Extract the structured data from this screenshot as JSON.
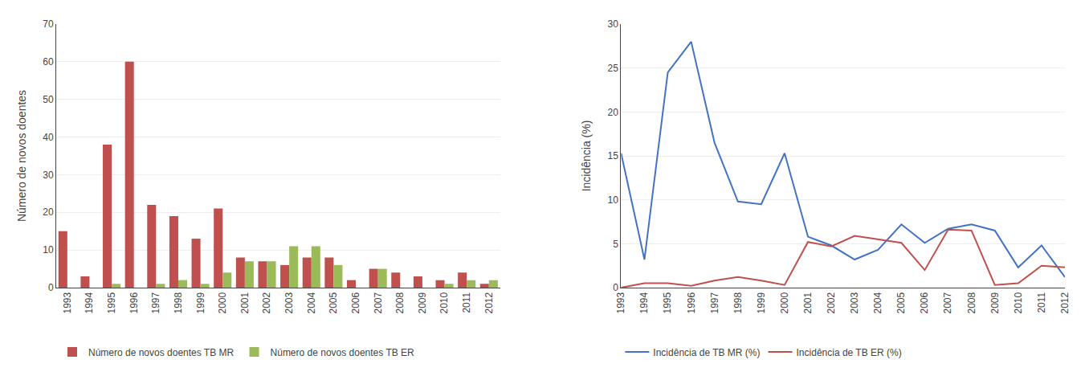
{
  "chart_data": [
    {
      "type": "bar",
      "categories": [
        "1993",
        "1994",
        "1995",
        "1996",
        "1997",
        "1998",
        "1999",
        "2000",
        "2001",
        "2002",
        "2003",
        "2004",
        "2005",
        "2006",
        "2007",
        "2008",
        "2009",
        "2010",
        "2011",
        "2012"
      ],
      "series": [
        {
          "name": "Número de novos doentes TB MR",
          "color": "#C0504D",
          "values": [
            15,
            3,
            38,
            60,
            22,
            19,
            13,
            21,
            8,
            7,
            6,
            8,
            8,
            2,
            5,
            4,
            3,
            2,
            4,
            1
          ]
        },
        {
          "name": "Número de novos doentes TB ER",
          "color": "#9BBB59",
          "values": [
            0,
            0,
            1,
            0,
            1,
            2,
            1,
            4,
            7,
            7,
            11,
            11,
            6,
            0,
            5,
            0,
            0,
            1,
            2,
            2
          ]
        }
      ],
      "ylabel": "Número de novos doentes",
      "ylim": [
        0,
        70
      ],
      "yticks": [
        0,
        10,
        20,
        30,
        40,
        50,
        60,
        70
      ],
      "grid": true,
      "legend": "bottom"
    },
    {
      "type": "line",
      "categories": [
        "1993",
        "1994",
        "1995",
        "1996",
        "1997",
        "1998",
        "1999",
        "2000",
        "2001",
        "2002",
        "2003",
        "2004",
        "2005",
        "2006",
        "2007",
        "2008",
        "2009",
        "2010",
        "2011",
        "2012"
      ],
      "series": [
        {
          "name": "Incidência de TB MR (%)",
          "color": "#4472C4",
          "values": [
            15.3,
            3.2,
            24.5,
            28.0,
            16.5,
            9.8,
            9.5,
            15.3,
            5.8,
            4.8,
            3.2,
            4.3,
            7.2,
            5.1,
            6.7,
            7.2,
            6.5,
            2.3,
            4.8,
            1.2
          ]
        },
        {
          "name": "Incidência de TB ER (%)",
          "color": "#C0504D",
          "values": [
            0.0,
            0.5,
            0.5,
            0.2,
            0.8,
            1.2,
            0.8,
            0.3,
            5.2,
            4.7,
            5.9,
            5.5,
            5.1,
            2.0,
            6.6,
            6.5,
            0.3,
            0.5,
            2.5,
            2.3
          ]
        }
      ],
      "ylabel": "Incidência (%)",
      "ylim": [
        0,
        30
      ],
      "yticks": [
        0,
        5,
        10,
        15,
        20,
        25,
        30
      ],
      "grid": true,
      "legend": "bottom"
    }
  ]
}
